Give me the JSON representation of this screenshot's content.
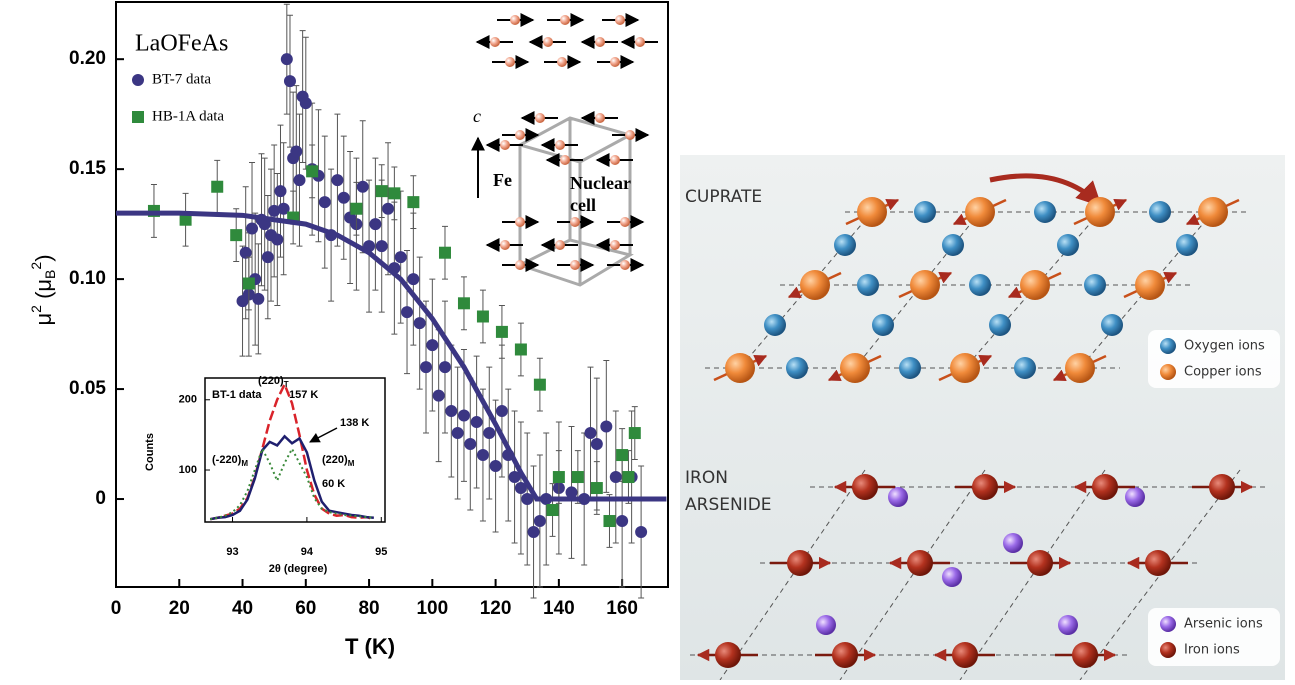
{
  "chart_data": [
    {
      "type": "scatter",
      "annotation": "LaOFeAs",
      "x_label": "T (K)",
      "y_label_parts": [
        "μ",
        "2",
        " (μ",
        "B",
        "2",
        ")"
      ],
      "xlim": [
        0,
        174.5
      ],
      "ylim": [
        -0.04,
        0.226
      ],
      "xticks": [
        0,
        20,
        40,
        60,
        80,
        100,
        120,
        140,
        160
      ],
      "yticks": [
        0,
        0.05,
        {
          "value": 0.1,
          "label": "0.10"
        },
        0.15,
        {
          "value": 0.2,
          "label": "0.20"
        }
      ],
      "series": [
        {
          "name": "BT-7 data",
          "color": "#3b3683",
          "marker": "circle",
          "x": [
            40,
            41,
            42,
            43,
            44,
            45,
            46,
            47,
            48,
            49,
            50,
            51,
            52,
            53,
            54,
            55,
            56,
            57,
            58,
            59,
            60,
            62,
            64,
            66,
            68,
            70,
            72,
            74,
            76,
            78,
            80,
            82,
            84,
            86,
            88,
            90,
            92,
            94,
            96,
            98,
            100,
            102,
            104,
            106,
            108,
            110,
            112,
            114,
            116,
            118,
            120,
            122,
            124,
            126,
            128,
            130,
            132,
            134,
            136,
            140,
            144,
            148,
            150,
            152,
            155,
            158,
            160,
            163,
            166
          ],
          "values": [
            0.09,
            0.112,
            0.093,
            0.123,
            0.1,
            0.091,
            0.127,
            0.125,
            0.11,
            0.12,
            0.131,
            0.118,
            0.14,
            0.132,
            0.2,
            0.19,
            0.155,
            0.158,
            0.145,
            0.183,
            0.18,
            0.15,
            0.147,
            0.135,
            0.12,
            0.145,
            0.137,
            0.128,
            0.125,
            0.142,
            0.115,
            0.125,
            0.115,
            0.132,
            0.105,
            0.11,
            0.085,
            0.1,
            0.08,
            0.06,
            0.07,
            0.047,
            0.06,
            0.04,
            0.03,
            0.038,
            0.025,
            0.035,
            0.02,
            0.03,
            0.015,
            0.04,
            0.02,
            0.01,
            0.005,
            0.0,
            -0.015,
            -0.01,
            0.0,
            0.005,
            0.003,
            0.0,
            0.03,
            0.025,
            0.033,
            0.01,
            -0.01,
            0.01,
            -0.015
          ],
          "errors": [
            0.025,
            0.03,
            0.028,
            0.03,
            0.03,
            0.025,
            0.03,
            0.03,
            0.028,
            0.03,
            0.03,
            0.03,
            0.03,
            0.03,
            0.025,
            0.03,
            0.03,
            0.03,
            0.03,
            0.03,
            0.03,
            0.03,
            0.03,
            0.03,
            0.03,
            0.03,
            0.028,
            0.03,
            0.03,
            0.03,
            0.03,
            0.03,
            0.03,
            0.03,
            0.03,
            0.03,
            0.028,
            0.03,
            0.03,
            0.03,
            0.03,
            0.03,
            0.03,
            0.03,
            0.03,
            0.03,
            0.03,
            0.03,
            0.03,
            0.03,
            0.03,
            0.03,
            0.03,
            0.03,
            0.03,
            0.03,
            0.03,
            0.03,
            0.03,
            0.03,
            0.03,
            0.03,
            0.03,
            0.03,
            0.03,
            0.03,
            0.03,
            0.03,
            0.03
          ]
        },
        {
          "name": "HB-1A data",
          "color": "#2f8a3c",
          "marker": "square",
          "x": [
            12,
            22,
            32,
            38,
            42,
            56,
            62,
            76,
            84,
            88,
            94,
            104,
            110,
            116,
            122,
            128,
            134,
            138,
            140,
            146,
            152,
            156,
            160,
            162,
            164
          ],
          "values": [
            0.131,
            0.127,
            0.142,
            0.12,
            0.098,
            0.128,
            0.149,
            0.132,
            0.14,
            0.139,
            0.135,
            0.112,
            0.089,
            0.083,
            0.076,
            0.068,
            0.052,
            -0.005,
            0.01,
            0.01,
            0.005,
            -0.01,
            0.02,
            0.01,
            0.03
          ],
          "errors": [
            0.012,
            0.012,
            0.012,
            0.012,
            0.012,
            0.012,
            0.012,
            0.012,
            0.012,
            0.012,
            0.012,
            0.012,
            0.012,
            0.012,
            0.012,
            0.012,
            0.012,
            0.012,
            0.012,
            0.012,
            0.012,
            0.012,
            0.012,
            0.012,
            0.012
          ]
        },
        {
          "type": "line",
          "color": "#3b3683",
          "x": [
            0,
            20,
            40,
            60,
            70,
            80,
            90,
            100,
            110,
            120,
            128,
            133,
            174
          ],
          "values": [
            0.13,
            0.13,
            0.129,
            0.125,
            0.12,
            0.112,
            0.1,
            0.082,
            0.06,
            0.034,
            0.012,
            0,
            0
          ]
        }
      ]
    },
    {
      "type": "line",
      "annotation": "BT-1 data",
      "x_label": "2θ (degree)",
      "y_label": "Counts",
      "peak_labels": [
        {
          "text": "(220)",
          "sub": "T"
        },
        {
          "text": "(-220)",
          "sub": "M"
        },
        {
          "text": "(220)",
          "sub": "M"
        }
      ],
      "xlim": [
        92.63,
        95.05
      ],
      "ylim": [
        26,
        231
      ],
      "xticks": [
        93,
        94,
        95
      ],
      "yticks": [
        100,
        200
      ],
      "x": [
        92.7,
        92.8,
        92.9,
        93.0,
        93.1,
        93.2,
        93.3,
        93.4,
        93.5,
        93.6,
        93.7,
        93.8,
        93.9,
        94.0,
        94.1,
        94.2,
        94.3,
        94.4,
        94.5,
        94.6,
        94.7,
        94.8,
        94.9
      ],
      "series": [
        {
          "name": "157 K",
          "color": "#d9232a",
          "style": "dashed",
          "values": [
            30,
            32,
            35,
            38,
            45,
            60,
            90,
            130,
            170,
            200,
            222,
            195,
            150,
            100,
            65,
            45,
            38,
            35,
            36,
            33,
            32,
            33,
            30
          ]
        },
        {
          "name": "138 K",
          "color": "#1f1f6e",
          "style": "solid",
          "values": [
            30,
            32,
            33,
            36,
            42,
            58,
            88,
            128,
            140,
            135,
            148,
            138,
            145,
            125,
            85,
            55,
            42,
            40,
            38,
            36,
            35,
            33,
            32
          ]
        },
        {
          "name": "60 K",
          "color": "#3a8a3a",
          "style": "dotted",
          "values": [
            30,
            32,
            35,
            40,
            50,
            70,
            100,
            130,
            110,
            85,
            110,
            130,
            110,
            90,
            60,
            45,
            40,
            38,
            36,
            35,
            34,
            33,
            32
          ]
        }
      ]
    }
  ],
  "crystal": {
    "axis": "c",
    "atom": "Fe",
    "cell": [
      "Nuclear",
      "cell"
    ]
  },
  "cuprate": {
    "title": "CUPRATE",
    "legend": [
      "Oxygen ions",
      "Copper ions"
    ]
  },
  "iron_arsenide": {
    "title": [
      "IRON",
      "ARSENIDE"
    ],
    "legend": [
      "Arsenic ions",
      "Iron ions"
    ]
  }
}
